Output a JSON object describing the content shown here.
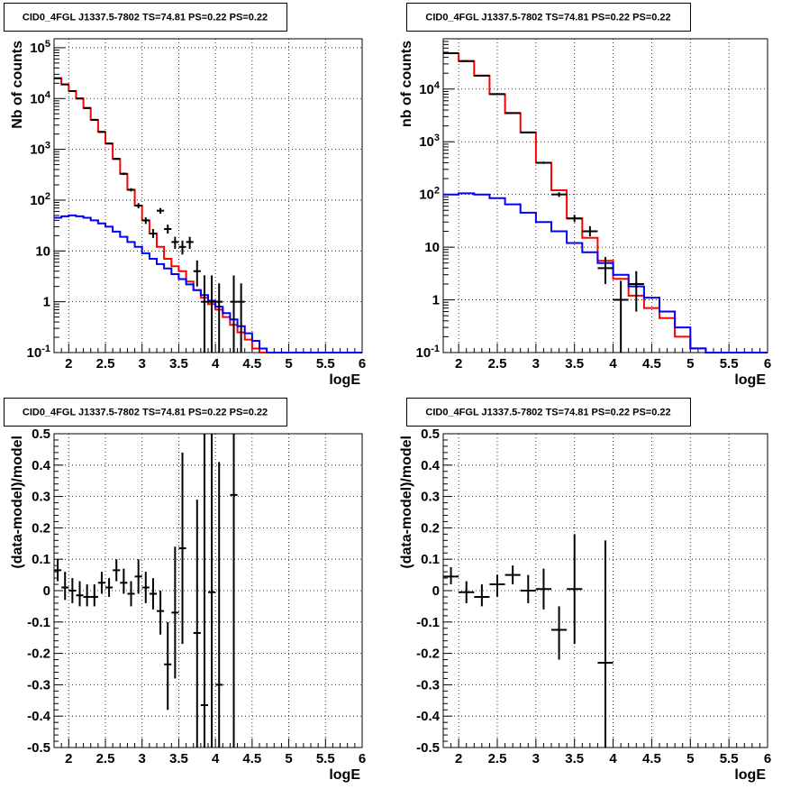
{
  "chart_data": [
    {
      "type": "line",
      "title": "CID0_4FGL J1337.5-7802 TS=74.81 PS=0.22 PS=0.22",
      "xlabel": "logE",
      "ylabel": "Nb of counts",
      "xlim": [
        1.8,
        6.0
      ],
      "ylim": [
        0.1,
        150000
      ],
      "yscale": "log",
      "grid": true,
      "x_ticks": [
        "2",
        "2.5",
        "3",
        "3.5",
        "4",
        "4.5",
        "5",
        "5.5",
        "6"
      ],
      "y_ticks": [
        "10^-1",
        "1",
        "10",
        "10^2",
        "10^3",
        "10^4",
        "10^5"
      ],
      "bin_edges": [
        1.8,
        1.9,
        2.0,
        2.1,
        2.2,
        2.3,
        2.4,
        2.5,
        2.6,
        2.7,
        2.8,
        2.9,
        3.0,
        3.1,
        3.2,
        3.3,
        3.4,
        3.5,
        3.6,
        3.7,
        3.8,
        3.9,
        4.0,
        4.1,
        4.2,
        4.3,
        4.4,
        4.5,
        4.6,
        4.7,
        4.8,
        4.9,
        5.0,
        5.1,
        5.2,
        5.3,
        5.4,
        5.5,
        5.6,
        5.7,
        5.8,
        5.9,
        6.0
      ],
      "series": [
        {
          "style": "step",
          "color": "#ff0000",
          "values": [
            25000,
            19000,
            14000,
            10000,
            6500,
            3800,
            2200,
            1300,
            650,
            330,
            160,
            78,
            40,
            22,
            12,
            7,
            5,
            4,
            2.5,
            1.7,
            1.2,
            0.9,
            0.7,
            0.5,
            0.35,
            0.25,
            0.18,
            0.12,
            0.09,
            0.1,
            0.1,
            0.1,
            0.1,
            0.1,
            0.1,
            0.1,
            0.1,
            0.1,
            0.1,
            0.1,
            0.1,
            0.1
          ]
        },
        {
          "style": "step",
          "color": "#0000ff",
          "values": [
            45,
            48,
            50,
            48,
            45,
            40,
            35,
            30,
            24,
            19,
            15,
            12,
            9,
            7,
            5.5,
            4.5,
            3.5,
            2.8,
            2.2,
            1.7,
            1.35,
            1.05,
            0.8,
            0.6,
            0.45,
            0.33,
            0.24,
            0.17,
            0.12,
            0.09,
            0.1,
            0.1,
            0.1,
            0.1,
            0.1,
            0.1,
            0.1,
            0.1,
            0.1,
            0.1,
            0.1,
            0.1
          ]
        },
        {
          "style": "errorbar",
          "color": "#000000",
          "points": [
            {
              "x": 1.85,
              "y": 25000,
              "lo": 24800,
              "hi": 25200
            },
            {
              "x": 1.95,
              "y": 19000,
              "lo": 18800,
              "hi": 19200
            },
            {
              "x": 2.05,
              "y": 14000,
              "lo": 13900,
              "hi": 14100
            },
            {
              "x": 2.15,
              "y": 10000,
              "lo": 9900,
              "hi": 10100
            },
            {
              "x": 2.25,
              "y": 6500,
              "lo": 6420,
              "hi": 6580
            },
            {
              "x": 2.35,
              "y": 3800,
              "lo": 3740,
              "hi": 3860
            },
            {
              "x": 2.45,
              "y": 2200,
              "lo": 2150,
              "hi": 2250
            },
            {
              "x": 2.55,
              "y": 1300,
              "lo": 1260,
              "hi": 1340
            },
            {
              "x": 2.65,
              "y": 650,
              "lo": 625,
              "hi": 675
            },
            {
              "x": 2.75,
              "y": 330,
              "lo": 312,
              "hi": 348
            },
            {
              "x": 2.85,
              "y": 160,
              "lo": 148,
              "hi": 172
            },
            {
              "x": 2.95,
              "y": 78,
              "lo": 69,
              "hi": 87
            },
            {
              "x": 3.05,
              "y": 40,
              "lo": 34,
              "hi": 46
            },
            {
              "x": 3.15,
              "y": 22,
              "lo": 18,
              "hi": 27
            },
            {
              "x": 3.25,
              "y": 62,
              "lo": 54,
              "hi": 70
            },
            {
              "x": 3.35,
              "y": 27,
              "lo": 22,
              "hi": 33
            },
            {
              "x": 3.45,
              "y": 15,
              "lo": 11,
              "hi": 19
            },
            {
              "x": 3.55,
              "y": 12,
              "lo": 8.5,
              "hi": 16
            },
            {
              "x": 3.65,
              "y": 15,
              "lo": 11,
              "hi": 19
            },
            {
              "x": 3.75,
              "y": 4,
              "lo": 2,
              "hi": 6.5
            },
            {
              "x": 3.85,
              "y": 1,
              "lo": 0.1,
              "hi": 3.3
            },
            {
              "x": 3.95,
              "y": 1,
              "lo": 0.1,
              "hi": 3.3
            },
            {
              "x": 4.05,
              "y": 1,
              "lo": 0.1,
              "hi": 2.3
            },
            {
              "x": 4.25,
              "y": 1,
              "lo": 0.1,
              "hi": 3.3
            },
            {
              "x": 4.35,
              "y": 1,
              "lo": 0.1,
              "hi": 2.3
            }
          ]
        }
      ]
    },
    {
      "type": "line",
      "title": "CID0_4FGL J1337.5-7802 TS=74.81 PS=0.22 PS=0.22",
      "xlabel": "logE",
      "ylabel": "nb of counts",
      "xlim": [
        1.8,
        6.0
      ],
      "ylim": [
        0.1,
        90000
      ],
      "yscale": "log",
      "grid": true,
      "x_ticks": [
        "2",
        "2.5",
        "3",
        "3.5",
        "4",
        "4.5",
        "5",
        "5.5",
        "6"
      ],
      "y_ticks": [
        "10^-1",
        "1",
        "10",
        "10^2",
        "10^3",
        "10^4"
      ],
      "bin_edges": [
        1.8,
        2.0,
        2.2,
        2.4,
        2.6,
        2.8,
        3.0,
        3.2,
        3.4,
        3.6,
        3.8,
        4.0,
        4.2,
        4.4,
        4.6,
        4.8,
        5.0,
        5.2,
        5.4,
        5.6,
        5.8,
        6.0
      ],
      "series": [
        {
          "style": "step",
          "color": "#ff0000",
          "values": [
            48000,
            34000,
            18000,
            8000,
            3500,
            1500,
            400,
            120,
            35,
            15,
            5.5,
            2.5,
            1.2,
            0.7,
            0.45,
            0.2,
            0.12,
            0.1,
            0.1,
            0.1,
            0.1
          ]
        },
        {
          "style": "step",
          "color": "#0000ff",
          "values": [
            100,
            105,
            100,
            85,
            65,
            45,
            30,
            20,
            12,
            8,
            5,
            3,
            1.8,
            1.1,
            0.6,
            0.3,
            0.12,
            0.1,
            0.1,
            0.1,
            0.1
          ]
        },
        {
          "style": "errorbar",
          "color": "#000000",
          "points": [
            {
              "x": 1.9,
              "y": 48000,
              "lo": 47800,
              "hi": 48200
            },
            {
              "x": 2.1,
              "y": 34000,
              "lo": 33800,
              "hi": 34200
            },
            {
              "x": 2.3,
              "y": 18000,
              "lo": 17900,
              "hi": 18100
            },
            {
              "x": 2.5,
              "y": 8000,
              "lo": 7920,
              "hi": 8080
            },
            {
              "x": 2.7,
              "y": 3500,
              "lo": 3440,
              "hi": 3560
            },
            {
              "x": 2.9,
              "y": 1500,
              "lo": 1460,
              "hi": 1540
            },
            {
              "x": 3.1,
              "y": 400,
              "lo": 380,
              "hi": 420
            },
            {
              "x": 3.3,
              "y": 100,
              "lo": 90,
              "hi": 110
            },
            {
              "x": 3.5,
              "y": 35,
              "lo": 30,
              "hi": 41
            },
            {
              "x": 3.7,
              "y": 20,
              "lo": 16,
              "hi": 25
            },
            {
              "x": 3.9,
              "y": 4,
              "lo": 2,
              "hi": 6.5
            },
            {
              "x": 4.1,
              "y": 1,
              "lo": 0.1,
              "hi": 2.3
            },
            {
              "x": 4.3,
              "y": 2,
              "lo": 0.6,
              "hi": 3.5
            }
          ]
        }
      ]
    },
    {
      "type": "scatter",
      "title": "CID0_4FGL J1337.5-7802 TS=74.81 PS=0.22 PS=0.22",
      "xlabel": "logE",
      "ylabel": "(data-model)/model",
      "xlim": [
        1.8,
        6.0
      ],
      "ylim": [
        -0.5,
        0.5
      ],
      "yscale": "linear",
      "grid": true,
      "x_ticks": [
        "2",
        "2.5",
        "3",
        "3.5",
        "4",
        "4.5",
        "5",
        "5.5",
        "6"
      ],
      "y_ticks": [
        "-0.5",
        "-0.4",
        "-0.3",
        "-0.2",
        "-0.1",
        "0",
        "0.1",
        "0.2",
        "0.3",
        "0.4",
        "0.5"
      ],
      "series": [
        {
          "style": "errorbar",
          "color": "#000000",
          "points": [
            {
              "x": 1.85,
              "y": 0.065,
              "xerr": 0.05,
              "lo": 0.03,
              "hi": 0.1
            },
            {
              "x": 1.95,
              "y": 0.01,
              "xerr": 0.05,
              "lo": -0.03,
              "hi": 0.06
            },
            {
              "x": 2.05,
              "y": 0.0,
              "xerr": 0.05,
              "lo": -0.04,
              "hi": 0.04
            },
            {
              "x": 2.15,
              "y": -0.015,
              "xerr": 0.05,
              "lo": -0.05,
              "hi": 0.03
            },
            {
              "x": 2.25,
              "y": -0.02,
              "xerr": 0.05,
              "lo": -0.05,
              "hi": 0.02
            },
            {
              "x": 2.35,
              "y": -0.02,
              "xerr": 0.05,
              "lo": -0.05,
              "hi": 0.02
            },
            {
              "x": 2.45,
              "y": 0.025,
              "xerr": 0.05,
              "lo": -0.01,
              "hi": 0.06
            },
            {
              "x": 2.55,
              "y": 0.01,
              "xerr": 0.05,
              "lo": -0.02,
              "hi": 0.04
            },
            {
              "x": 2.65,
              "y": 0.065,
              "xerr": 0.05,
              "lo": 0.03,
              "hi": 0.1
            },
            {
              "x": 2.75,
              "y": 0.025,
              "xerr": 0.05,
              "lo": -0.01,
              "hi": 0.07
            },
            {
              "x": 2.85,
              "y": -0.01,
              "xerr": 0.05,
              "lo": -0.05,
              "hi": 0.03
            },
            {
              "x": 2.95,
              "y": 0.045,
              "xerr": 0.05,
              "lo": -0.01,
              "hi": 0.1
            },
            {
              "x": 3.05,
              "y": 0.01,
              "xerr": 0.05,
              "lo": -0.04,
              "hi": 0.06
            },
            {
              "x": 3.15,
              "y": -0.01,
              "xerr": 0.05,
              "lo": -0.06,
              "hi": 0.04
            },
            {
              "x": 3.25,
              "y": -0.065,
              "xerr": 0.05,
              "lo": -0.14,
              "hi": 0.0
            },
            {
              "x": 3.35,
              "y": -0.235,
              "xerr": 0.05,
              "lo": -0.38,
              "hi": -0.1
            },
            {
              "x": 3.45,
              "y": -0.07,
              "xerr": 0.05,
              "lo": -0.28,
              "hi": 0.14
            },
            {
              "x": 3.55,
              "y": 0.135,
              "xerr": 0.05,
              "lo": -0.17,
              "hi": 0.44
            },
            {
              "x": 3.75,
              "y": -0.135,
              "xerr": 0.05,
              "lo": -0.5,
              "hi": 0.29
            },
            {
              "x": 3.85,
              "y": -0.365,
              "xerr": 0.05,
              "lo": -0.5,
              "hi": 0.5
            },
            {
              "x": 3.95,
              "y": -0.005,
              "xerr": 0.05,
              "lo": -0.5,
              "hi": 0.5
            },
            {
              "x": 4.05,
              "y": -0.3,
              "xerr": 0.05,
              "lo": -0.5,
              "hi": 0.41
            },
            {
              "x": 4.25,
              "y": 0.305,
              "xerr": 0.05,
              "lo": -0.5,
              "hi": 0.5
            }
          ]
        }
      ]
    },
    {
      "type": "scatter",
      "title": "CID0_4FGL J1337.5-7802 TS=74.81 PS=0.22 PS=0.22",
      "xlabel": "logE",
      "ylabel": "(data-model)/model",
      "xlim": [
        1.8,
        6.0
      ],
      "ylim": [
        -0.5,
        0.5
      ],
      "yscale": "linear",
      "grid": true,
      "x_ticks": [
        "2",
        "2.5",
        "3",
        "3.5",
        "4",
        "4.5",
        "5",
        "5.5",
        "6"
      ],
      "y_ticks": [
        "-0.5",
        "-0.4",
        "-0.3",
        "-0.2",
        "-0.1",
        "0",
        "0.1",
        "0.2",
        "0.3",
        "0.4",
        "0.5"
      ],
      "series": [
        {
          "style": "errorbar",
          "color": "#000000",
          "points": [
            {
              "x": 1.9,
              "y": 0.045,
              "xerr": 0.1,
              "lo": 0.02,
              "hi": 0.075
            },
            {
              "x": 2.1,
              "y": -0.005,
              "xerr": 0.1,
              "lo": -0.04,
              "hi": 0.03
            },
            {
              "x": 2.3,
              "y": -0.02,
              "xerr": 0.1,
              "lo": -0.05,
              "hi": 0.02
            },
            {
              "x": 2.5,
              "y": 0.02,
              "xerr": 0.1,
              "lo": -0.02,
              "hi": 0.05
            },
            {
              "x": 2.7,
              "y": 0.05,
              "xerr": 0.1,
              "lo": 0.02,
              "hi": 0.08
            },
            {
              "x": 2.9,
              "y": 0.0,
              "xerr": 0.1,
              "lo": -0.04,
              "hi": 0.05
            },
            {
              "x": 3.1,
              "y": 0.005,
              "xerr": 0.1,
              "lo": -0.06,
              "hi": 0.07
            },
            {
              "x": 3.3,
              "y": -0.125,
              "xerr": 0.1,
              "lo": -0.22,
              "hi": -0.05
            },
            {
              "x": 3.5,
              "y": 0.005,
              "xerr": 0.1,
              "lo": -0.17,
              "hi": 0.18
            },
            {
              "x": 3.9,
              "y": -0.23,
              "xerr": 0.1,
              "lo": -0.5,
              "hi": 0.16
            }
          ]
        }
      ]
    }
  ]
}
